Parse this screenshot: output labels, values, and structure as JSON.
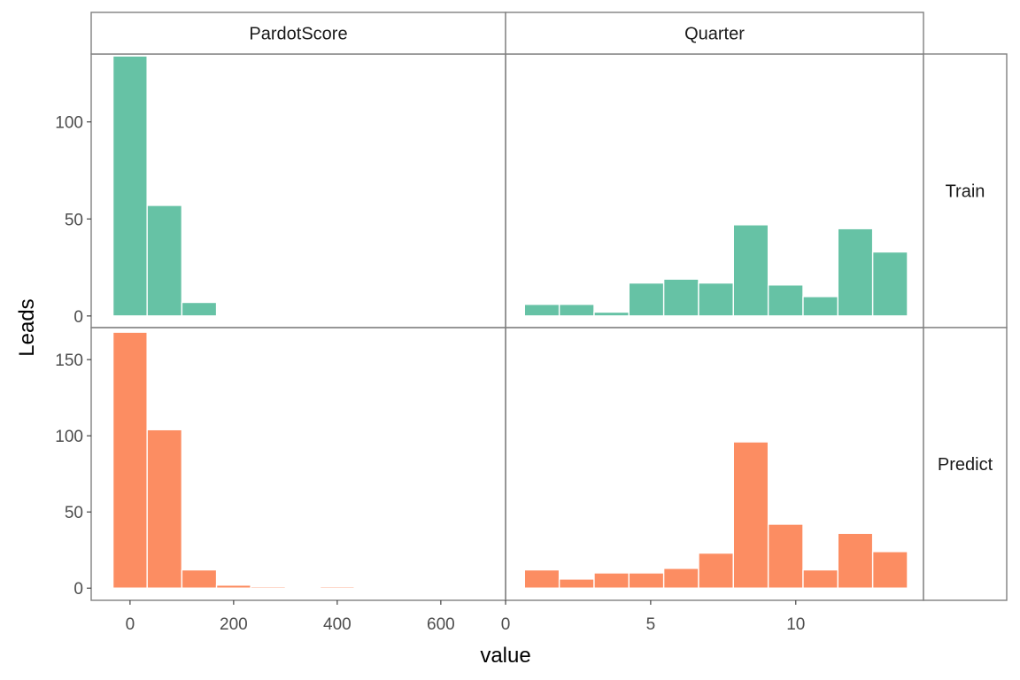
{
  "chart_data": {
    "type": "bar",
    "ylabel": "Leads",
    "xlabel": "value",
    "columns": [
      "PardotScore",
      "Quarter"
    ],
    "rows": [
      "Train",
      "Predict"
    ],
    "colors": {
      "Train": "#66c2a5",
      "Predict": "#fc8d62"
    },
    "x_axes": {
      "PardotScore": {
        "range": [
          -75,
          725
        ],
        "ticks": [
          0,
          200,
          400,
          600
        ],
        "tick_labels": [
          "0",
          "200",
          "400",
          "600"
        ]
      },
      "Quarter": {
        "range": [
          0,
          14.4
        ],
        "ticks": [
          0,
          5,
          10
        ],
        "tick_labels": [
          "0",
          "5",
          "10"
        ]
      }
    },
    "y_axes": {
      "Train": {
        "range": [
          -6,
          135
        ],
        "ticks": [
          0,
          50,
          100
        ],
        "tick_labels": [
          "0",
          "50",
          "100"
        ]
      },
      "Predict": {
        "range": [
          -8,
          171
        ],
        "ticks": [
          0,
          50,
          100,
          150
        ],
        "tick_labels": [
          "0",
          "50",
          "100",
          "150"
        ]
      }
    },
    "panels": [
      {
        "row": "Train",
        "column": "PardotScore",
        "bins": [
          {
            "start": -33,
            "end": 33,
            "count": 134
          },
          {
            "start": 33,
            "end": 100,
            "count": 57
          },
          {
            "start": 100,
            "end": 167,
            "count": 7
          }
        ]
      },
      {
        "row": "Train",
        "column": "Quarter",
        "bins": [
          {
            "start": 0.65,
            "end": 1.85,
            "count": 6
          },
          {
            "start": 1.85,
            "end": 3.05,
            "count": 6
          },
          {
            "start": 3.05,
            "end": 4.25,
            "count": 2
          },
          {
            "start": 4.25,
            "end": 5.45,
            "count": 17
          },
          {
            "start": 5.45,
            "end": 6.65,
            "count": 19
          },
          {
            "start": 6.65,
            "end": 7.85,
            "count": 17
          },
          {
            "start": 7.85,
            "end": 9.05,
            "count": 47
          },
          {
            "start": 9.05,
            "end": 10.25,
            "count": 16
          },
          {
            "start": 10.25,
            "end": 11.45,
            "count": 10
          },
          {
            "start": 11.45,
            "end": 12.65,
            "count": 45
          },
          {
            "start": 12.65,
            "end": 13.85,
            "count": 33
          }
        ]
      },
      {
        "row": "Predict",
        "column": "PardotScore",
        "bins": [
          {
            "start": -33,
            "end": 33,
            "count": 168
          },
          {
            "start": 33,
            "end": 100,
            "count": 104
          },
          {
            "start": 100,
            "end": 167,
            "count": 12
          },
          {
            "start": 167,
            "end": 233,
            "count": 2
          },
          {
            "start": 233,
            "end": 300,
            "count": 1
          },
          {
            "start": 300,
            "end": 367,
            "count": 0
          },
          {
            "start": 367,
            "end": 433,
            "count": 1
          }
        ]
      },
      {
        "row": "Predict",
        "column": "Quarter",
        "bins": [
          {
            "start": 0.65,
            "end": 1.85,
            "count": 12
          },
          {
            "start": 1.85,
            "end": 3.05,
            "count": 6
          },
          {
            "start": 3.05,
            "end": 4.25,
            "count": 10
          },
          {
            "start": 4.25,
            "end": 5.45,
            "count": 10
          },
          {
            "start": 5.45,
            "end": 6.65,
            "count": 13
          },
          {
            "start": 6.65,
            "end": 7.85,
            "count": 23
          },
          {
            "start": 7.85,
            "end": 9.05,
            "count": 96
          },
          {
            "start": 9.05,
            "end": 10.25,
            "count": 42
          },
          {
            "start": 10.25,
            "end": 11.45,
            "count": 12
          },
          {
            "start": 11.45,
            "end": 12.65,
            "count": 36
          },
          {
            "start": 12.65,
            "end": 13.85,
            "count": 24
          }
        ]
      }
    ]
  }
}
